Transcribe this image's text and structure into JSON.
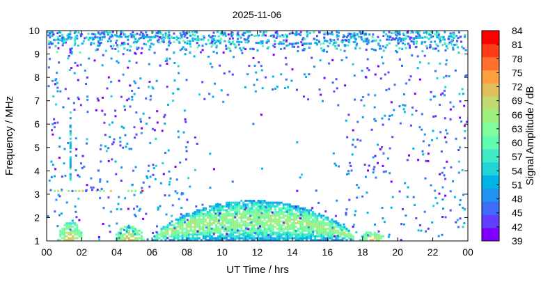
{
  "chart_data": {
    "type": "heatmap",
    "title": "2025-11-06",
    "xlabel": "UT Time / hrs",
    "ylabel": "Frequency / MHz",
    "colorbar_label": "Signal Amplitude / dB",
    "xlim": [
      0,
      24
    ],
    "ylim": [
      1,
      10
    ],
    "x_ticks": [
      "00",
      "02",
      "04",
      "06",
      "08",
      "10",
      "12",
      "14",
      "16",
      "18",
      "20",
      "22",
      "00"
    ],
    "y_ticks": [
      "1",
      "2",
      "3",
      "4",
      "5",
      "6",
      "7",
      "8",
      "9",
      "10"
    ],
    "colorbar": {
      "min": 39,
      "max": 84,
      "ticks": [
        "39",
        "42",
        "45",
        "48",
        "51",
        "54",
        "57",
        "60",
        "63",
        "66",
        "69",
        "72",
        "75",
        "78",
        "81",
        "84"
      ],
      "colors": [
        "#8000ff",
        "#6040ff",
        "#3f6cf8",
        "#2094f0",
        "#00b4e8",
        "#20d4d8",
        "#40ecc8",
        "#60fcb0",
        "#80fc9c",
        "#a0f080",
        "#c0dc70",
        "#e0c05c",
        "#ffa040",
        "#ff7030",
        "#ff3c18",
        "#ff0000"
      ]
    },
    "grid": false,
    "legend": "colorbar-right",
    "features": [
      {
        "name": "bright low-frequency arc",
        "x_range": [
          6,
          17.5
        ],
        "freq_range": [
          1,
          2.7
        ],
        "peak_dB": 70
      },
      {
        "name": "low-frequency patch",
        "x_range": [
          0.6,
          2
        ],
        "freq_range": [
          1,
          1.8
        ],
        "peak_dB": 72
      },
      {
        "name": "low-frequency patch",
        "x_range": [
          3.8,
          5.5
        ],
        "freq_range": [
          1,
          1.6
        ],
        "peak_dB": 72
      },
      {
        "name": "low-frequency patch",
        "x_range": [
          17.8,
          19.2
        ],
        "freq_range": [
          1,
          1.4
        ],
        "peak_dB": 72
      },
      {
        "name": "constant-frequency line",
        "x_range": [
          0.2,
          5.5
        ],
        "freq_range": [
          3.1,
          3.2
        ],
        "peak_dB": 84
      },
      {
        "name": "upper band",
        "x_range": [
          0,
          24
        ],
        "freq_range": [
          9,
          10
        ],
        "peak_dB": 60
      },
      {
        "name": "vertical streak",
        "x_range": [
          1.3,
          1.5
        ],
        "freq_range": [
          3.5,
          6.5
        ],
        "peak_dB": 57
      },
      {
        "name": "scattered detections",
        "x_range": [
          0,
          24
        ],
        "freq_range": [
          1,
          10
        ],
        "peak_dB": 54
      }
    ]
  }
}
